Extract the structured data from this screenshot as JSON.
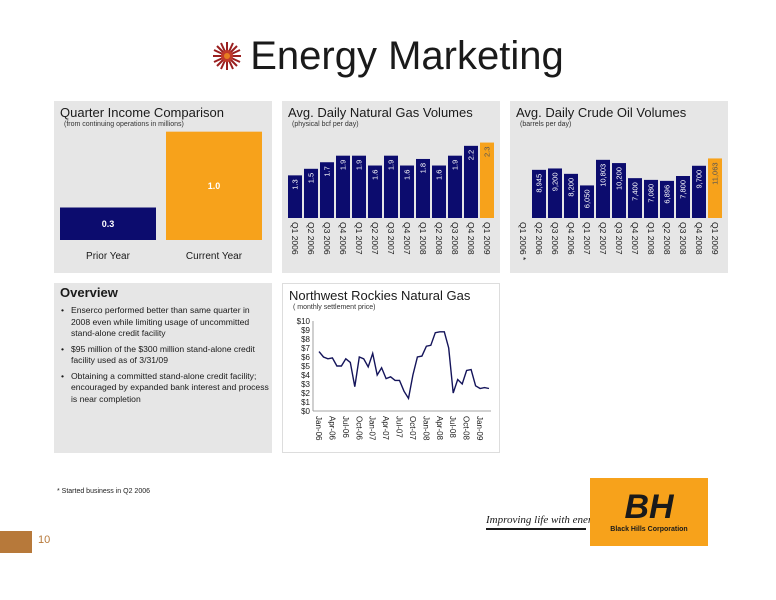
{
  "page": {
    "title": "Energy Marketing",
    "footnote": "* Started business in Q2 2006",
    "page_number": "10",
    "tagline": "Improving life with energy",
    "company": "Black Hills Corporation",
    "logo_text": "BH"
  },
  "colors": {
    "navy": "#0c0c6e",
    "orange": "#f7a21b",
    "panel_bg": "#e6e6e6",
    "brand_brown": "#b7793a",
    "line": "#14145a"
  },
  "overview": {
    "title": "Overview",
    "bullets": [
      "Enserco performed better than same quarter in 2008 even while limiting usage of uncommitted stand-alone credit facility",
      "$95 million of the $300 million stand-alone credit facility used as of 3/31/09",
      "Obtaining a committed stand-alone credit facility; encouraged by expanded bank interest and process is near completion"
    ]
  },
  "chart_data": [
    {
      "type": "bar",
      "title": "Quarter Income Comparison",
      "subtitle": "(from continuing operations in millions)",
      "categories": [
        "Prior Year",
        "Current Year"
      ],
      "values": [
        0.3,
        1.0
      ],
      "value_labels": [
        "0.3",
        "1.0"
      ],
      "colors": [
        "#0c0c6e",
        "#f7a21b"
      ],
      "ylim": [
        0,
        1.2
      ]
    },
    {
      "type": "bar",
      "title": "Avg. Daily Natural Gas Volumes",
      "subtitle": "(physical bcf per day)",
      "categories": [
        "Q1 2006",
        "Q2 2006",
        "Q3 2006",
        "Q4 2006",
        "Q1 2007",
        "Q2 2007",
        "Q3 2007",
        "Q4 2007",
        "Q1 2008",
        "Q2 2008",
        "Q3 2008",
        "Q4 2008",
        "Q1 2009"
      ],
      "values": [
        1.3,
        1.5,
        1.7,
        1.9,
        1.9,
        1.6,
        1.9,
        1.6,
        1.8,
        1.6,
        1.9,
        2.2,
        2.3
      ],
      "value_labels": [
        "1.3",
        "1.5",
        "1.7",
        "1.9",
        "1.9",
        "1.6",
        "1.9",
        "1.6",
        "1.8",
        "1.6",
        "1.9",
        "2.2",
        "2.3"
      ],
      "highlight_index": 12,
      "ylim": [
        0,
        2.5
      ]
    },
    {
      "type": "bar",
      "title": "Avg. Daily Crude Oil Volumes",
      "subtitle": "(barrels per day)",
      "categories": [
        "Q1 2006 *",
        "Q2 2006",
        "Q3 2006",
        "Q4 2006",
        "Q1 2007",
        "Q2 2007",
        "Q3 2007",
        "Q4 2007",
        "Q1 2008",
        "Q2 2008",
        "Q3 2008",
        "Q4 2008",
        "Q1 2009"
      ],
      "values": [
        0,
        8945,
        9200,
        8200,
        6050,
        10803,
        10200,
        7400,
        7080,
        6896,
        7800,
        9700,
        11063
      ],
      "value_labels": [
        "",
        "8,945",
        "9,200",
        "8,200",
        "6,050",
        "10,803",
        "10,200",
        "7,400",
        "7,080",
        "6,896",
        "7,800",
        "9,700",
        "11,063"
      ],
      "highlight_index": 12,
      "ylim": [
        0,
        13000
      ]
    },
    {
      "type": "line",
      "title": "Northwest Rockies Natural Gas",
      "subtitle": "( monthly settlement price)",
      "y_ticks": [
        "$10",
        "$9",
        "$8",
        "$7",
        "$6",
        "$5",
        "$4",
        "$3",
        "$2",
        "$1",
        "$0"
      ],
      "x_ticks": [
        "Jan-06",
        "Apr-06",
        "Jul-06",
        "Oct-06",
        "Jan-07",
        "Apr-07",
        "Jul-07",
        "Oct-07",
        "Jan-08",
        "Apr-08",
        "Jul-08",
        "Oct-08",
        "Jan-09"
      ],
      "ylim": [
        0,
        10
      ],
      "x": [
        "Jan-06",
        "Feb-06",
        "Mar-06",
        "Apr-06",
        "May-06",
        "Jun-06",
        "Jul-06",
        "Aug-06",
        "Sep-06",
        "Oct-06",
        "Nov-06",
        "Dec-06",
        "Jan-07",
        "Feb-07",
        "Mar-07",
        "Apr-07",
        "May-07",
        "Jun-07",
        "Jul-07",
        "Aug-07",
        "Sep-07",
        "Oct-07",
        "Nov-07",
        "Dec-07",
        "Jan-08",
        "Feb-08",
        "Mar-08",
        "Apr-08",
        "May-08",
        "Jun-08",
        "Jul-08",
        "Aug-08",
        "Sep-08",
        "Oct-08",
        "Nov-08",
        "Dec-08",
        "Jan-09",
        "Feb-09",
        "Mar-09"
      ],
      "values": [
        6.6,
        6.0,
        5.8,
        5.9,
        5.0,
        5.0,
        5.8,
        5.4,
        2.7,
        6.0,
        5.8,
        4.9,
        6.4,
        4.0,
        4.8,
        3.6,
        3.8,
        3.4,
        3.4,
        2.2,
        1.4,
        4.0,
        6.0,
        6.1,
        7.2,
        7.3,
        8.7,
        8.8,
        8.8,
        7.0,
        2.0,
        3.5,
        3.0,
        4.5,
        4.6,
        2.8,
        2.5,
        2.6,
        2.5
      ]
    }
  ]
}
